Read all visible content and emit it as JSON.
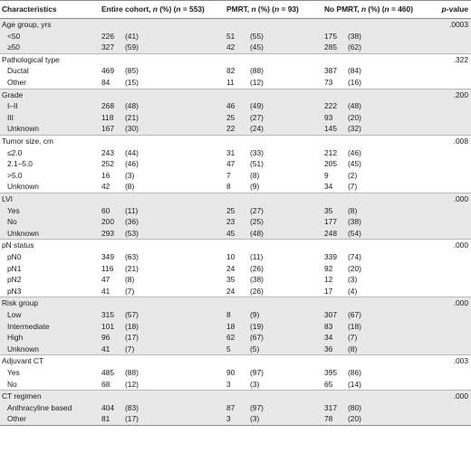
{
  "headers": {
    "characteristics": "Characteristics",
    "entire_pre": "Entire cohort, ",
    "entire_n": "n",
    "entire_mid": " (%) (",
    "entire_n2": "n",
    "entire_post": " = 553)",
    "pmrt_pre": "PMRT, ",
    "pmrt_n": "n",
    "pmrt_mid": " (%) (",
    "pmrt_n2": "n",
    "pmrt_post": " = 93)",
    "nopmrt_pre": "No PMRT, ",
    "nopmrt_n": "n",
    "nopmrt_mid": " (%) (",
    "nopmrt_n2": "n",
    "nopmrt_post": " = 460)",
    "pvalue_p": "p",
    "pvalue_rest": "-value"
  },
  "groups": [
    {
      "label": "Age group, yrs",
      "p": ".0003",
      "rows": [
        {
          "label": "<50",
          "e": [
            "226",
            "(41)"
          ],
          "p1": [
            "51",
            "(55)"
          ],
          "p2": [
            "175",
            "(38)"
          ]
        },
        {
          "label": "≥50",
          "e": [
            "327",
            "(59)"
          ],
          "p1": [
            "42",
            "(45)"
          ],
          "p2": [
            "285",
            "(62)"
          ]
        }
      ]
    },
    {
      "label": "Pathological type",
      "p": ".322",
      "rows": [
        {
          "label": "Ductal",
          "e": [
            "469",
            "(85)"
          ],
          "p1": [
            "82",
            "(88)"
          ],
          "p2": [
            "387",
            "(84)"
          ]
        },
        {
          "label": "Other",
          "e": [
            "84",
            "(15)"
          ],
          "p1": [
            "11",
            "(12)"
          ],
          "p2": [
            "73",
            "(16)"
          ]
        }
      ]
    },
    {
      "label": "Grade",
      "p": ".200",
      "rows": [
        {
          "label": "I–II",
          "e": [
            "268",
            "(48)"
          ],
          "p1": [
            "46",
            "(49)"
          ],
          "p2": [
            "222",
            "(48)"
          ]
        },
        {
          "label": "III",
          "e": [
            "118",
            "(21)"
          ],
          "p1": [
            "25",
            "(27)"
          ],
          "p2": [
            "93",
            "(20)"
          ]
        },
        {
          "label": "Unknown",
          "e": [
            "167",
            "(30)"
          ],
          "p1": [
            "22",
            "(24)"
          ],
          "p2": [
            "145",
            "(32)"
          ]
        }
      ]
    },
    {
      "label": "Tumor size, cm",
      "p": ".008",
      "rows": [
        {
          "label": "≤2.0",
          "e": [
            "243",
            "(44)"
          ],
          "p1": [
            "31",
            "(33)"
          ],
          "p2": [
            "212",
            "(46)"
          ]
        },
        {
          "label": "2.1–5.0",
          "e": [
            "252",
            "(46)"
          ],
          "p1": [
            "47",
            "(51)"
          ],
          "p2": [
            "205",
            "(45)"
          ]
        },
        {
          "label": ">5.0",
          "e": [
            "16",
            "(3)"
          ],
          "p1": [
            "7",
            "(8)"
          ],
          "p2": [
            "9",
            "(2)"
          ]
        },
        {
          "label": "Unknown",
          "e": [
            "42",
            "(8)"
          ],
          "p1": [
            "8",
            "(9)"
          ],
          "p2": [
            "34",
            "(7)"
          ]
        }
      ]
    },
    {
      "label": "LVI",
      "p": ".000",
      "rows": [
        {
          "label": "Yes",
          "e": [
            "60",
            "(11)"
          ],
          "p1": [
            "25",
            "(27)"
          ],
          "p2": [
            "35",
            "(8)"
          ]
        },
        {
          "label": "No",
          "e": [
            "200",
            "(36)"
          ],
          "p1": [
            "23",
            "(25)"
          ],
          "p2": [
            "177",
            "(38)"
          ]
        },
        {
          "label": "Unknown",
          "e": [
            "293",
            "(53)"
          ],
          "p1": [
            "45",
            "(48)"
          ],
          "p2": [
            "248",
            "(54)"
          ]
        }
      ]
    },
    {
      "label": "pN status",
      "p": ".000",
      "rows": [
        {
          "label": "pN0",
          "e": [
            "349",
            "(63)"
          ],
          "p1": [
            "10",
            "(11)"
          ],
          "p2": [
            "339",
            "(74)"
          ]
        },
        {
          "label": "pN1",
          "e": [
            "116",
            "(21)"
          ],
          "p1": [
            "24",
            "(26)"
          ],
          "p2": [
            "92",
            "(20)"
          ]
        },
        {
          "label": "pN2",
          "e": [
            "47",
            "(8)"
          ],
          "p1": [
            "35",
            "(38)"
          ],
          "p2": [
            "12",
            "(3)"
          ]
        },
        {
          "label": "pN3",
          "e": [
            "41",
            "(7)"
          ],
          "p1": [
            "24",
            "(26)"
          ],
          "p2": [
            "17",
            "(4)"
          ]
        }
      ]
    },
    {
      "label": "Risk group",
      "p": ".000",
      "rows": [
        {
          "label": "Low",
          "e": [
            "315",
            "(57)"
          ],
          "p1": [
            "8",
            "(9)"
          ],
          "p2": [
            "307",
            "(67)"
          ]
        },
        {
          "label": "Intermediate",
          "e": [
            "101",
            "(18)"
          ],
          "p1": [
            "18",
            "(19)"
          ],
          "p2": [
            "83",
            "(18)"
          ]
        },
        {
          "label": "High",
          "e": [
            "96",
            "(17)"
          ],
          "p1": [
            "62",
            "(67)"
          ],
          "p2": [
            "34",
            "(7)"
          ]
        },
        {
          "label": "Unknown",
          "e": [
            "41",
            "(7)"
          ],
          "p1": [
            "5",
            "(5)"
          ],
          "p2": [
            "36",
            "(8)"
          ]
        }
      ]
    },
    {
      "label": "Adjuvant CT",
      "p": ".003",
      "rows": [
        {
          "label": "Yes",
          "e": [
            "485",
            "(88)"
          ],
          "p1": [
            "90",
            "(97)"
          ],
          "p2": [
            "395",
            "(86)"
          ]
        },
        {
          "label": "No",
          "e": [
            "68",
            "(12)"
          ],
          "p1": [
            "3",
            "(3)"
          ],
          "p2": [
            "65",
            "(14)"
          ]
        }
      ]
    },
    {
      "label": "CT regimen",
      "p": ".000",
      "rows": [
        {
          "label": "Anthracyline based",
          "e": [
            "404",
            "(83)"
          ],
          "p1": [
            "87",
            "(97)"
          ],
          "p2": [
            "317",
            "(80)"
          ]
        },
        {
          "label": "Other",
          "e": [
            "81",
            "(17)"
          ],
          "p1": [
            "3",
            "(3)"
          ],
          "p2": [
            "78",
            "(20)"
          ]
        }
      ]
    }
  ]
}
